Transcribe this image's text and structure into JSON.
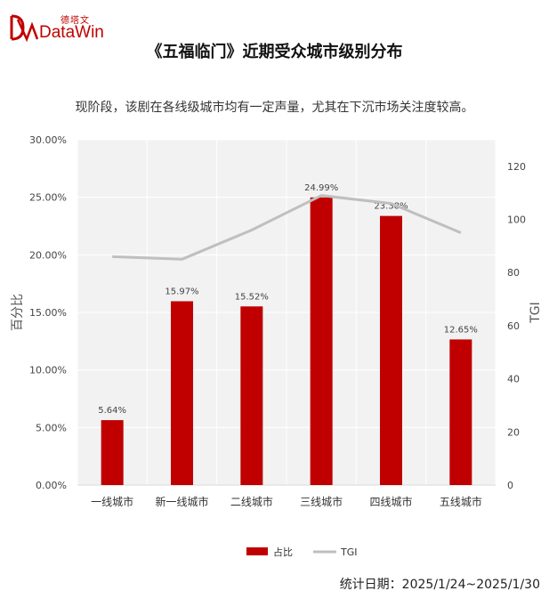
{
  "logo": {
    "cn": "德塔文",
    "en": "DataWin"
  },
  "title": "《五福临门》近期受众城市级别分布",
  "subtitle": "现阶段，该剧在各线级城市均有一定声量，尤其在下沉市场关注度较高。",
  "footer": {
    "date_note": "统计日期：2025/1/24~2025/1/30"
  },
  "colors": {
    "bar": "#c00000",
    "line": "#bfbfbf",
    "plot_bg": "#f2f2f2"
  },
  "chart_data": {
    "type": "bar",
    "categories": [
      "一线城市",
      "新一线城市",
      "二线城市",
      "三线城市",
      "四线城市",
      "五线城市"
    ],
    "series": [
      {
        "name": "占比",
        "type": "bar",
        "axis": "left",
        "values": [
          5.64,
          15.97,
          15.52,
          24.99,
          23.38,
          12.65
        ],
        "labels": [
          "5.64%",
          "15.97%",
          "15.52%",
          "24.99%",
          "23.38%",
          "12.65%"
        ]
      },
      {
        "name": "TGI",
        "type": "line",
        "axis": "right",
        "values": [
          86,
          85,
          96,
          109,
          106,
          95
        ]
      }
    ],
    "ylabel": "百分比",
    "y2label": "TGI",
    "ylim": [
      0,
      30
    ],
    "y2lim": [
      0,
      130
    ],
    "yticks": [
      "0.00%",
      "5.00%",
      "10.00%",
      "15.00%",
      "20.00%",
      "25.00%",
      "30.00%"
    ],
    "y2ticks": [
      "0",
      "20",
      "40",
      "60",
      "80",
      "100",
      "120"
    ],
    "grid": true,
    "legend": "bottom-center"
  }
}
